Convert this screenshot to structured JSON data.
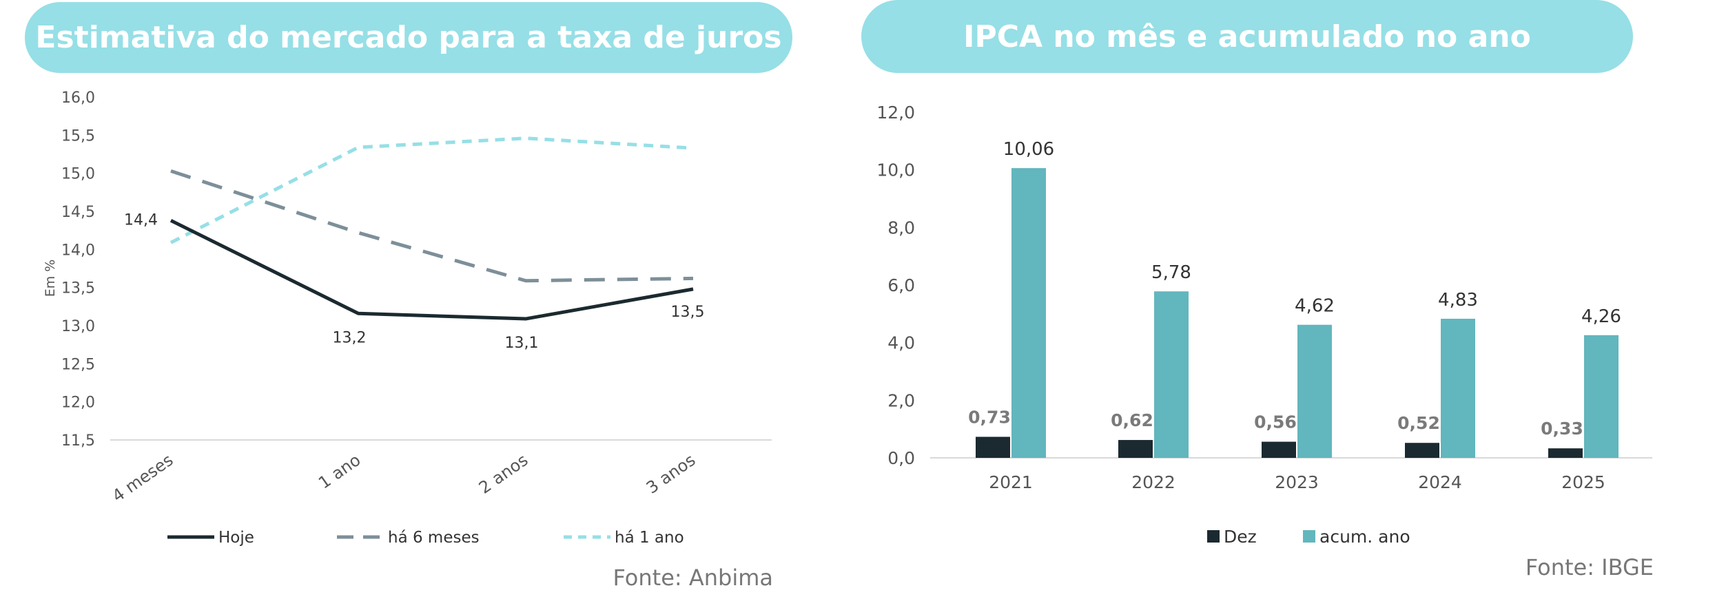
{
  "colors": {
    "banner": "#96dfe6",
    "hoje": "#1b2a30",
    "seis_meses": "#7d8f99",
    "um_ano": "#96dfe6",
    "dez": "#1b2a30",
    "acum": "#62b6bd",
    "axis": "#d9d9d9"
  },
  "chart_data": [
    {
      "type": "line",
      "title": "Estimativa do mercado para a taxa de juros",
      "ylabel": "Em %",
      "xlabel": "",
      "ylim": [
        11.5,
        16.0
      ],
      "yticks": [
        "11,5",
        "12,0",
        "12,5",
        "13,0",
        "13,5",
        "14,0",
        "14,5",
        "15,0",
        "15,5",
        "16,0"
      ],
      "categories": [
        "4 meses",
        "1 ano",
        "2 anos",
        "3 anos"
      ],
      "series": [
        {
          "name": "Hoje",
          "values": [
            14.38,
            13.16,
            13.09,
            13.48
          ],
          "style": "solid"
        },
        {
          "name": "há 6 meses",
          "values": [
            15.03,
            14.22,
            13.59,
            13.62
          ],
          "style": "dashed"
        },
        {
          "name": "há 1 ano",
          "values": [
            14.09,
            15.34,
            15.46,
            15.33
          ],
          "style": "dotted"
        }
      ],
      "data_labels": [
        "14,4",
        "13,2",
        "13,1",
        "13,5"
      ],
      "legend_position": "bottom",
      "source": "Fonte: Anbima"
    },
    {
      "type": "bar",
      "title": "IPCA no mês e acumulado no ano",
      "ylim": [
        0,
        12
      ],
      "yticks": [
        "0,0",
        "2,0",
        "4,0",
        "6,0",
        "8,0",
        "10,0",
        "12,0"
      ],
      "categories": [
        "2021",
        "2022",
        "2023",
        "2024",
        "2025"
      ],
      "series": [
        {
          "name": "Dez",
          "values": [
            0.73,
            0.62,
            0.56,
            0.52,
            0.33
          ],
          "labels": [
            "0,73",
            "0,62",
            "0,56",
            "0,52",
            "0,33"
          ]
        },
        {
          "name": "acum. ano",
          "values": [
            10.06,
            5.78,
            4.62,
            4.83,
            4.26
          ],
          "labels": [
            "10,06",
            "5,78",
            "4,62",
            "4,83",
            "4,26"
          ]
        }
      ],
      "legend_position": "bottom",
      "source": "Fonte: IBGE"
    }
  ]
}
